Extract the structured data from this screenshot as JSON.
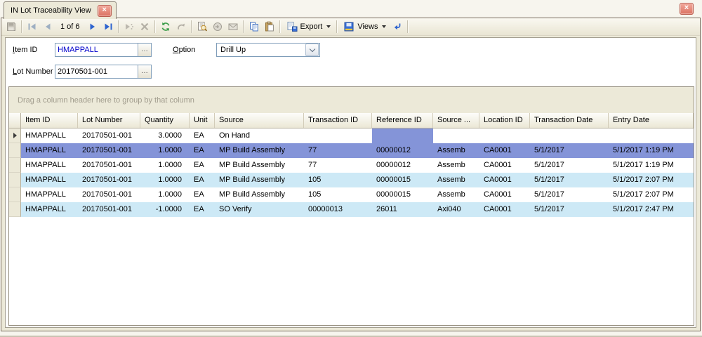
{
  "tab": {
    "title": "IN Lot Traceability View"
  },
  "icons": {
    "close_glyph": "×",
    "browse_glyph": "…"
  },
  "toolbar": {
    "items": [
      {
        "name": "save-button",
        "icon": "save",
        "enabled": false
      },
      {
        "sep": true
      },
      {
        "name": "first-record-button",
        "icon": "first",
        "enabled": false,
        "tint": "#9eafc2"
      },
      {
        "name": "previous-record-button",
        "icon": "prev",
        "enabled": false,
        "tint": "#9eafc2"
      },
      {
        "name": "record-position",
        "text": "1 of 6"
      },
      {
        "name": "next-record-button",
        "icon": "next",
        "enabled": true,
        "tint": "#2d63cf"
      },
      {
        "name": "last-record-button",
        "icon": "last",
        "enabled": true,
        "tint": "#2d63cf"
      },
      {
        "sep": true
      },
      {
        "name": "insert-record-button",
        "icon": "insert",
        "enabled": false
      },
      {
        "name": "delete-button",
        "icon": "delete",
        "enabled": false
      },
      {
        "sep": true
      },
      {
        "name": "refresh-button",
        "icon": "refresh",
        "enabled": true
      },
      {
        "name": "undo-button",
        "icon": "undo",
        "enabled": false
      },
      {
        "sep": true
      },
      {
        "name": "print-preview-button",
        "icon": "preview",
        "enabled": true
      },
      {
        "name": "send-button",
        "icon": "send",
        "enabled": false
      },
      {
        "name": "email-button",
        "icon": "mail",
        "enabled": false
      },
      {
        "sep": true
      },
      {
        "name": "copy-button",
        "icon": "copy",
        "enabled": true
      },
      {
        "name": "paste-button",
        "icon": "paste",
        "enabled": true
      },
      {
        "sep": true
      },
      {
        "name": "export-button",
        "icon": "export",
        "label": "Export",
        "caret": true,
        "enabled": true
      },
      {
        "sep": true
      },
      {
        "name": "views-button",
        "icon": "views",
        "label": "Views",
        "caret": true,
        "enabled": true
      },
      {
        "name": "switch-view-button",
        "icon": "switch",
        "enabled": true,
        "tint": "#2d63cf"
      },
      {
        "sep": true
      }
    ]
  },
  "form": {
    "item_id": {
      "label": "Item ID",
      "mnemonic": "I",
      "value": "HMAPPALL"
    },
    "lot_number": {
      "label": "Lot Number",
      "mnemonic": "L",
      "value": "20170501-001"
    },
    "option": {
      "label": "Option",
      "mnemonic": "O",
      "value": "Drill Up"
    }
  },
  "grid": {
    "group_panel_text": "Drag a column header here to group by that column",
    "columns": [
      {
        "label": "",
        "width": 17
      },
      {
        "label": "Item ID",
        "width": 81
      },
      {
        "label": "Lot Number",
        "width": 89
      },
      {
        "label": "Quantity",
        "width": 70,
        "align": "right"
      },
      {
        "label": "Unit",
        "width": 36
      },
      {
        "label": "Source",
        "width": 127
      },
      {
        "label": "Transaction ID",
        "width": 97
      },
      {
        "label": "Reference ID",
        "width": 87
      },
      {
        "label": "Source ...",
        "width": 66
      },
      {
        "label": "Location ID",
        "width": 72
      },
      {
        "label": "Transaction Date",
        "width": 112
      },
      {
        "label": "Entry Date",
        "width": 121
      }
    ],
    "rows": [
      {
        "state": "normal",
        "current": true,
        "focus_col": 6,
        "cells": [
          "HMAPPALL",
          "20170501-001",
          "3.0000",
          "EA",
          "On Hand",
          "",
          "",
          "",
          "",
          "",
          ""
        ]
      },
      {
        "state": "selected",
        "current": false,
        "cells": [
          "HMAPPALL",
          "20170501-001",
          "1.0000",
          "EA",
          "MP Build Assembly",
          "77",
          "00000012",
          "Assemb",
          "CA0001",
          "5/1/2017",
          "5/1/2017 1:19 PM"
        ]
      },
      {
        "state": "normal",
        "current": false,
        "cells": [
          "HMAPPALL",
          "20170501-001",
          "1.0000",
          "EA",
          "MP Build Assembly",
          "77",
          "00000012",
          "Assemb",
          "CA0001",
          "5/1/2017",
          "5/1/2017 1:19 PM"
        ]
      },
      {
        "state": "alt",
        "current": false,
        "cells": [
          "HMAPPALL",
          "20170501-001",
          "1.0000",
          "EA",
          "MP Build Assembly",
          "105",
          "00000015",
          "Assemb",
          "CA0001",
          "5/1/2017",
          "5/1/2017 2:07 PM"
        ]
      },
      {
        "state": "normal",
        "current": false,
        "cells": [
          "HMAPPALL",
          "20170501-001",
          "1.0000",
          "EA",
          "MP Build Assembly",
          "105",
          "00000015",
          "Assemb",
          "CA0001",
          "5/1/2017",
          "5/1/2017 2:07 PM"
        ]
      },
      {
        "state": "alt",
        "current": false,
        "cells": [
          "HMAPPALL",
          "20170501-001",
          "-1.0000",
          "EA",
          "SO Verify",
          "00000013",
          "26011",
          "Axi040",
          "CA0001",
          "5/1/2017",
          "5/1/2017 2:47 PM"
        ]
      }
    ]
  },
  "colors": {
    "selection": "#8494d8",
    "alt_row": "#cde9f6",
    "theme_beige": "#ece9d8",
    "value_blue": "#0000cc"
  }
}
